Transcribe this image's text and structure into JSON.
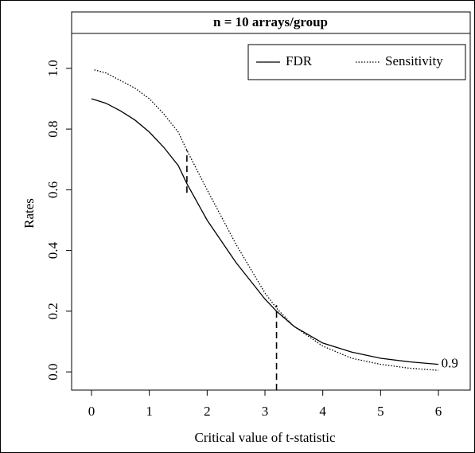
{
  "chart_data": {
    "type": "line",
    "title": "n = 10 arrays/group",
    "x_label": "Critical value of t-statistic",
    "y_label": "Rates",
    "xlim": [
      -0.344,
      6.55
    ],
    "ylim": [
      -0.06,
      1.115
    ],
    "xticks": [
      0,
      1,
      2,
      3,
      4,
      5,
      6
    ],
    "yticks": [
      {
        "value": 0,
        "label": "0.0"
      },
      0.2,
      0.4,
      0.6,
      0.8,
      {
        "value": 1,
        "label": "1.0"
      }
    ],
    "legend": "top-right",
    "series": [
      {
        "name": "FDR",
        "color": "#000000",
        "style": "solid",
        "x": [
          0,
          0.25,
          0.5,
          0.75,
          1,
          1.25,
          1.5,
          1.65,
          2,
          2.5,
          3,
          3.2,
          3.5,
          4,
          4.5,
          5,
          5.5,
          6
        ],
        "values": [
          0.9,
          0.885,
          0.86,
          0.83,
          0.79,
          0.74,
          0.68,
          0.62,
          0.5,
          0.36,
          0.24,
          0.2,
          0.15,
          0.095,
          0.065,
          0.045,
          0.033,
          0.025
        ]
      },
      {
        "name": "Sensitivity",
        "color": "#000000",
        "style": "dotted",
        "x": [
          0.05,
          0.25,
          0.5,
          0.75,
          1,
          1.25,
          1.5,
          1.65,
          2,
          2.5,
          3,
          3.2,
          3.5,
          4,
          4.5,
          5,
          5.5,
          6
        ],
        "values": [
          0.995,
          0.985,
          0.96,
          0.935,
          0.9,
          0.85,
          0.79,
          0.73,
          0.6,
          0.42,
          0.26,
          0.21,
          0.15,
          0.085,
          0.045,
          0.025,
          0.012,
          0.005
        ]
      }
    ],
    "reference_lines": [
      {
        "x": 1.65,
        "y": [
          0.59,
          0.73
        ]
      },
      {
        "x": 3.2,
        "y": [
          -0.06,
          0.22
        ]
      }
    ],
    "annotations": [
      {
        "text": "0.9",
        "x": 6.05,
        "y": 0.025
      }
    ]
  }
}
